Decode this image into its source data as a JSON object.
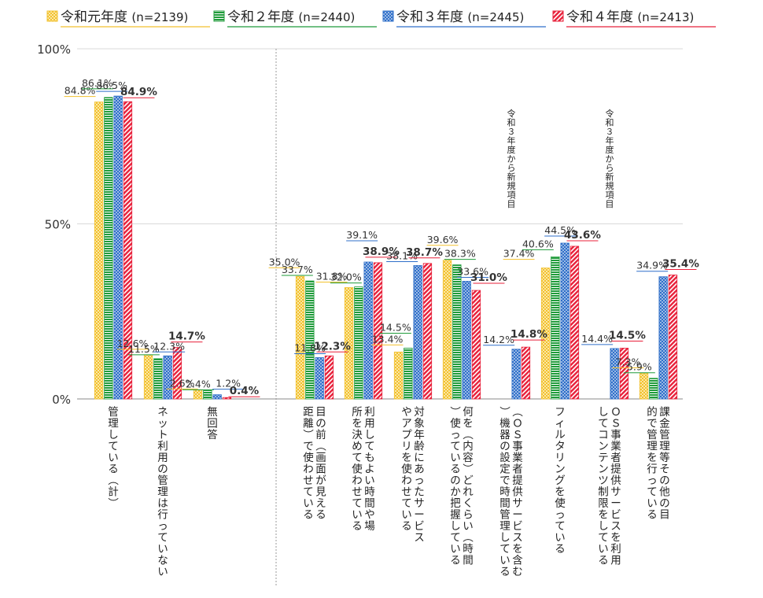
{
  "chart_data": {
    "type": "bar",
    "ylim": [
      0,
      100
    ],
    "y_ticks": [
      {
        "value": 0,
        "label": "0%"
      },
      {
        "value": 50,
        "label": "50%"
      },
      {
        "value": 100,
        "label": "100%"
      }
    ],
    "legend_position": "top",
    "series": [
      {
        "name": "令和元年度",
        "n": "(n=2139)",
        "color": "#F2C12E",
        "pattern": "checker"
      },
      {
        "name": "令和２年度",
        "n": "(n=2440)",
        "color": "#1F9B3A",
        "pattern": "hstripe"
      },
      {
        "name": "令和３年度",
        "n": "(n=2445)",
        "color": "#2F6FC9",
        "pattern": "cross"
      },
      {
        "name": "令和４年度",
        "n": "(n=2413)",
        "color": "#E8203A",
        "pattern": "diag"
      }
    ],
    "categories": [
      {
        "label": "管理している（計）",
        "values": [
          84.8,
          86.1,
          86.5,
          84.9
        ],
        "labels": [
          "84.8%",
          "86.1%",
          "86.5%",
          "84.9%"
        ],
        "note": ""
      },
      {
        "label": "ネット利用の管理は行っていない",
        "values": [
          12.6,
          11.5,
          12.3,
          14.7
        ],
        "labels": [
          "12.6%",
          "11.5%",
          "12.3%",
          "14.7%"
        ],
        "note": ""
      },
      {
        "label": "無回答",
        "values": [
          2.6,
          2.4,
          1.2,
          0.4
        ],
        "labels": [
          "2.6%",
          "2.4%",
          "1.2%",
          "0.4%"
        ],
        "note": ""
      },
      {
        "label": "目の前（画面が見える距離）で使わせている",
        "values": [
          35.0,
          33.7,
          11.8,
          12.3
        ],
        "labels": [
          "35.0%",
          "33.7%",
          "11.8%",
          "12.3%"
        ],
        "note": ""
      },
      {
        "label": "利用してもよい時間や場所を決めて使わせている",
        "values": [
          31.8,
          32.0,
          39.1,
          38.9
        ],
        "labels": [
          "31.8%",
          "32.0%",
          "39.1%",
          "38.9%"
        ],
        "note": ""
      },
      {
        "label": "対象年齢にあったサービスやアプリを使わせている",
        "values": [
          13.4,
          14.5,
          38.1,
          38.7
        ],
        "labels": [
          "13.4%",
          "14.5%",
          "38.1%",
          "38.7%"
        ],
        "note": ""
      },
      {
        "label": "何を（内容）どれくらい（時間）使っているのか把握している",
        "values": [
          39.6,
          38.3,
          33.6,
          31.0
        ],
        "labels": [
          "39.6%",
          "38.3%",
          "33.6%",
          "31.0%"
        ],
        "note": ""
      },
      {
        "label": "（ＯＳ事業者提供サービスを含む）機器の設定で時間管理している",
        "values": [
          null,
          null,
          14.2,
          14.8
        ],
        "labels": [
          "",
          "",
          "14.2%",
          "14.8%"
        ],
        "note": "令和３年度から新規項目"
      },
      {
        "label": "フィルタリングを使っている",
        "values": [
          37.4,
          40.6,
          44.5,
          43.6
        ],
        "labels": [
          "37.4%",
          "40.6%",
          "44.5%",
          "43.6%"
        ],
        "note": ""
      },
      {
        "label": "ＯＳ事業者提供サービスを利用してコンテンツ制限をしている",
        "values": [
          null,
          null,
          14.4,
          14.5
        ],
        "labels": [
          "",
          "",
          "14.4%",
          "14.5%"
        ],
        "note": "令和３年度から新規項目"
      },
      {
        "label": "課金管理等その他の目的で管理を行っている",
        "values": [
          7.3,
          5.9,
          34.9,
          35.4
        ],
        "labels": [
          "7.3%",
          "5.9%",
          "34.9%",
          "35.4%"
        ],
        "note": ""
      }
    ]
  }
}
